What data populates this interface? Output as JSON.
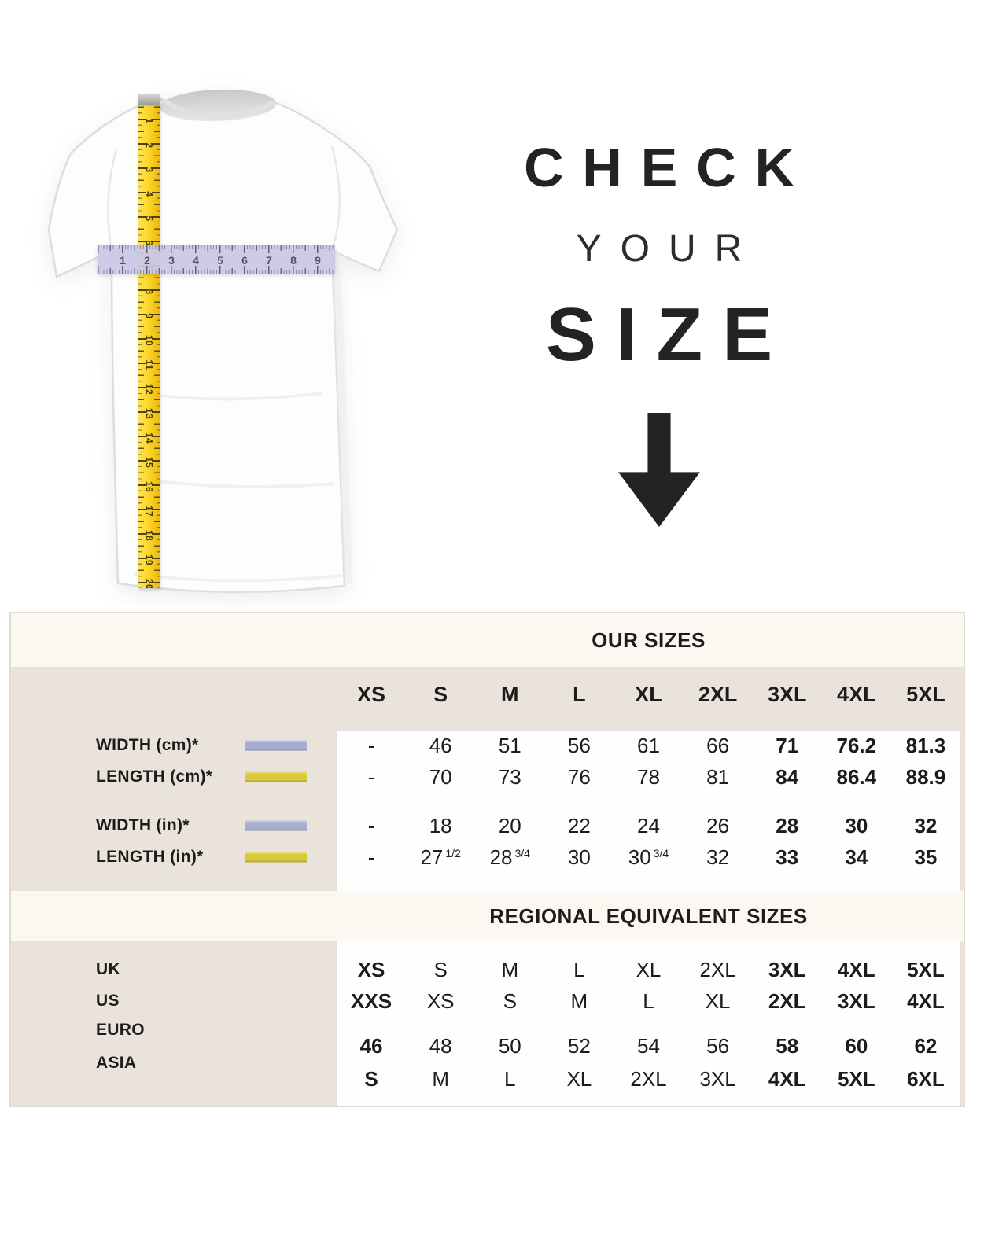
{
  "hero": {
    "title_line1": "CHECK",
    "title_line2": "YOUR",
    "title_line3": "SIZE",
    "arrow_icon": "down-arrow",
    "vertical_ruler": {
      "color": "#fcd526",
      "numbers": [
        1,
        2,
        3,
        4,
        5,
        6,
        7,
        8,
        9,
        10,
        11,
        12,
        13,
        14,
        15,
        16,
        17,
        18,
        19,
        20
      ]
    },
    "horizontal_ruler": {
      "color": "#cbc8e5",
      "numbers": [
        1,
        2,
        3,
        4,
        5,
        6,
        7,
        8,
        9
      ]
    }
  },
  "table": {
    "section1_title": "OUR SIZES",
    "size_headers": [
      "XS",
      "S",
      "M",
      "L",
      "XL",
      "2XL",
      "3XL",
      "4XL",
      "5XL"
    ],
    "measure_rows": [
      {
        "label": "WIDTH (cm)*",
        "swatch": "lavender",
        "values": [
          "-",
          "46",
          "51",
          "56",
          "61",
          "66",
          "71",
          "76.2",
          "81.3"
        ]
      },
      {
        "label": "LENGTH (cm)*",
        "swatch": "yellow",
        "values": [
          "-",
          "70",
          "73",
          "76",
          "78",
          "81",
          "84",
          "86.4",
          "88.9"
        ]
      },
      {
        "label": "WIDTH (in)*",
        "swatch": "lavender",
        "values": [
          "-",
          "18",
          "20",
          "22",
          "24",
          "26",
          "28",
          "30",
          "32"
        ]
      },
      {
        "label": "LENGTH (in)*",
        "swatch": "yellow",
        "values": [
          "-",
          "27 1/2",
          "28 3/4",
          "30",
          "30 3/4",
          "32",
          "33",
          "34",
          "35"
        ]
      }
    ],
    "measure_bold_columns": [
      6,
      7,
      8
    ],
    "section2_title": "REGIONAL EQUIVALENT SIZES",
    "regional_rows": [
      {
        "label": "UK",
        "offset": false,
        "values": [
          "XS",
          "S",
          "M",
          "L",
          "XL",
          "2XL",
          "3XL",
          "4XL",
          "5XL"
        ]
      },
      {
        "label": "US",
        "offset": false,
        "values": [
          "XXS",
          "XS",
          "S",
          "M",
          "L",
          "XL",
          "2XL",
          "3XL",
          "4XL"
        ]
      },
      {
        "label": "EURO",
        "offset": true,
        "values": [
          "46",
          "48",
          "50",
          "52",
          "54",
          "56",
          "58",
          "60",
          "62"
        ]
      },
      {
        "label": "ASIA",
        "offset": true,
        "values": [
          "S",
          "M",
          "L",
          "XL",
          "2XL",
          "3XL",
          "4XL",
          "5XL",
          "6XL"
        ]
      }
    ],
    "regional_bold_columns": [
      0,
      6,
      7,
      8
    ],
    "colors": {
      "lavender": "#a8aed1",
      "yellow": "#d9c93c",
      "beige": "#eae3db",
      "cream": "#fcf8f1",
      "border": "#dfdad2",
      "text": "#1c1c1a"
    }
  }
}
